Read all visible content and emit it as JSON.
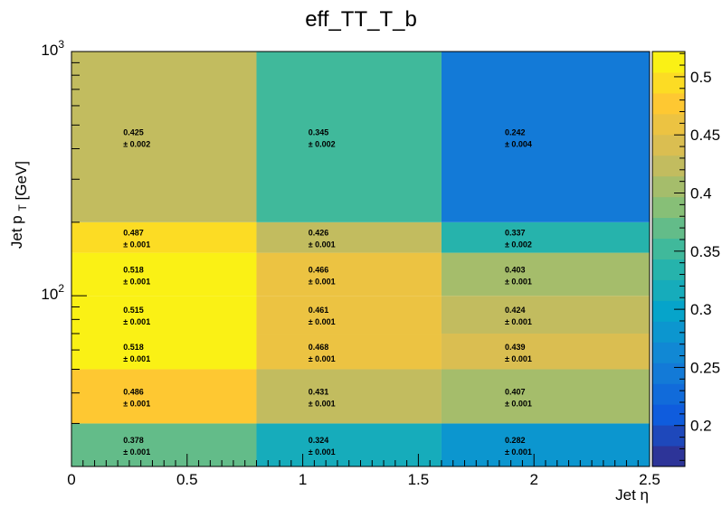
{
  "chart_data": {
    "type": "heatmap",
    "title": "eff_TT_T_b",
    "xlabel": "Jet η",
    "ylabel_main": "Jet p",
    "ylabel_sub": "T",
    "ylabel_unit": "[GeV]",
    "x_edges": [
      0,
      0.8,
      1.6,
      2.5
    ],
    "y_edges": [
      20,
      30,
      50,
      70,
      100,
      150,
      200,
      1000
    ],
    "y_scale": "log",
    "xlim": [
      0,
      2.5
    ],
    "ylim": [
      20,
      1000
    ],
    "x_ticks": [
      "0",
      "0.5",
      "1",
      "1.5",
      "2",
      "2.5"
    ],
    "x_tick_values": [
      0,
      0.5,
      1,
      1.5,
      2,
      2.5
    ],
    "y_tick_labels": [
      {
        "base": "10",
        "exp": "2",
        "value": 100
      },
      {
        "base": "10",
        "exp": "3",
        "value": 1000
      }
    ],
    "values": [
      [
        0.378,
        0.324,
        0.282
      ],
      [
        0.486,
        0.431,
        0.407
      ],
      [
        0.518,
        0.468,
        0.439
      ],
      [
        0.515,
        0.461,
        0.424
      ],
      [
        0.518,
        0.466,
        0.403
      ],
      [
        0.487,
        0.426,
        0.337
      ],
      [
        0.425,
        0.345,
        0.242
      ]
    ],
    "value_labels": [
      [
        "0.378",
        "0.324",
        "0.282"
      ],
      [
        "0.486",
        "0.431",
        "0.407"
      ],
      [
        "0.518",
        "0.468",
        "0.439"
      ],
      [
        "0.515",
        "0.461",
        "0.424"
      ],
      [
        "0.518",
        "0.466",
        "0.403"
      ],
      [
        "0.487",
        "0.426",
        "0.337"
      ],
      [
        "0.425",
        "0.345",
        "0.242"
      ]
    ],
    "error_labels": [
      [
        "± 0.001",
        "± 0.001",
        "± 0.001"
      ],
      [
        "± 0.001",
        "± 0.001",
        "± 0.001"
      ],
      [
        "± 0.001",
        "± 0.001",
        "± 0.001"
      ],
      [
        "± 0.001",
        "± 0.001",
        "± 0.001"
      ],
      [
        "± 0.001",
        "± 0.001",
        "± 0.001"
      ],
      [
        "± 0.001",
        "± 0.001",
        "± 0.002"
      ],
      [
        "± 0.002",
        "± 0.002",
        "± 0.004"
      ]
    ],
    "colorbar": {
      "min": 0.1648,
      "max": 0.5217,
      "ticks": [
        "0.2",
        "0.25",
        "0.3",
        "0.35",
        "0.4",
        "0.45",
        "0.5"
      ],
      "tick_values": [
        0.2,
        0.25,
        0.3,
        0.35,
        0.4,
        0.45,
        0.5
      ],
      "palette": "kBird",
      "palette_colors": [
        "#352a87",
        "#0f5cdd",
        "#1481d6",
        "#06a4ca",
        "#2eb7a4",
        "#87bf77",
        "#d1bb59",
        "#fec832",
        "#f9fb0e"
      ],
      "levels": 20
    },
    "grid": false
  }
}
